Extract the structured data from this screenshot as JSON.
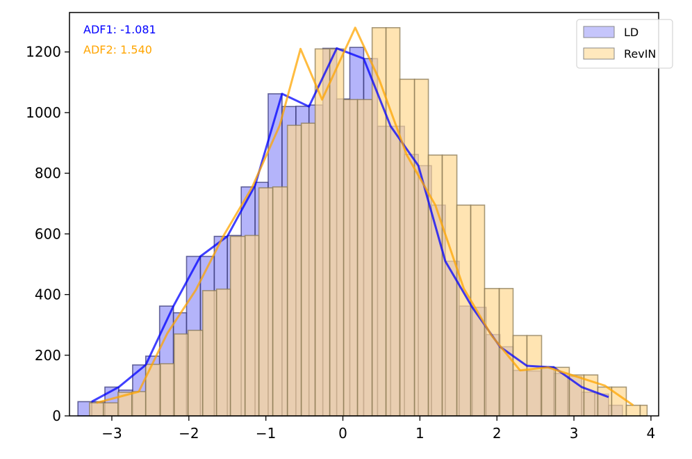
{
  "chart_data": {
    "type": "bar",
    "subtype": "overlaid-histogram-with-line",
    "title": "",
    "xlabel": "",
    "ylabel": "",
    "xlim": [
      -3.55,
      4.1
    ],
    "ylim": [
      0,
      1330
    ],
    "x_ticks": [
      -3,
      -2,
      -1,
      0,
      1,
      2,
      3,
      4
    ],
    "x_tick_labels": [
      "−3",
      "−2",
      "−1",
      "0",
      "1",
      "2",
      "3",
      "4"
    ],
    "y_ticks": [
      0,
      200,
      400,
      600,
      800,
      1000,
      1200
    ],
    "y_tick_labels": [
      "0",
      "200",
      "400",
      "600",
      "800",
      "1000",
      "1200"
    ],
    "grid": false,
    "legend": {
      "placement": "top-right",
      "entries": [
        "LD",
        "RevIN"
      ]
    },
    "annotations": [
      {
        "text": "ADF1: -1.081",
        "color": "#0000ff"
      },
      {
        "text": "ADF2: 1.540",
        "color": "#ffa500"
      }
    ],
    "series": [
      {
        "name": "LD",
        "color": "#0000ff",
        "bar_fill": "#8c8cf8",
        "bar_edges": [
          -3.44,
          -3.26,
          -3.09,
          -2.91,
          -2.73,
          -2.56,
          -2.38,
          -2.2,
          -2.03,
          -1.85,
          -1.67,
          -1.5,
          -1.32,
          -1.14,
          -0.97,
          -0.79,
          -0.61,
          -0.44,
          -0.26,
          -0.08,
          0.09,
          0.27,
          0.45,
          0.62,
          0.8,
          0.98,
          1.15,
          1.33,
          1.51,
          1.68,
          1.86,
          2.04,
          2.21,
          2.39,
          2.57,
          2.74,
          2.92,
          3.1,
          3.27,
          3.45,
          3.63
        ],
        "bar_values": [
          47,
          47,
          95,
          85,
          168,
          197,
          362,
          340,
          526,
          526,
          592,
          595,
          755,
          770,
          1062,
          1020,
          1021,
          1025,
          1212,
          1045,
          1215,
          1178,
          955,
          955,
          862,
          825,
          695,
          510,
          362,
          358,
          268,
          228,
          150,
          148,
          162,
          140,
          130,
          78,
          72,
          35
        ],
        "line_x": [
          -3.26,
          -2.91,
          -2.56,
          -2.2,
          -1.85,
          -1.5,
          -1.14,
          -0.79,
          -0.44,
          -0.08,
          0.27,
          0.62,
          0.98,
          1.33,
          1.68,
          2.04,
          2.39,
          2.74,
          3.1,
          3.45
        ],
        "line_y": [
          47,
          95,
          168,
          362,
          526,
          592,
          760,
          1062,
          1020,
          1212,
          1178,
          955,
          825,
          510,
          358,
          228,
          165,
          160,
          95,
          62
        ]
      },
      {
        "name": "RevIN",
        "color": "#ffa500",
        "bar_fill": "#ffd891",
        "bar_edges": [
          -3.29,
          -3.11,
          -2.92,
          -2.74,
          -2.56,
          -2.37,
          -2.19,
          -2.01,
          -1.82,
          -1.64,
          -1.46,
          -1.27,
          -1.09,
          -0.91,
          -0.72,
          -0.54,
          -0.36,
          -0.17,
          0.01,
          0.19,
          0.38,
          0.56,
          0.74,
          0.93,
          1.11,
          1.29,
          1.48,
          1.66,
          1.84,
          2.03,
          2.21,
          2.39,
          2.58,
          2.76,
          2.94,
          3.13,
          3.31,
          3.49,
          3.68,
          3.86,
          3.95
        ],
        "bar_values": [
          43,
          43,
          78,
          80,
          170,
          172,
          270,
          282,
          413,
          418,
          592,
          595,
          752,
          755,
          958,
          965,
          1210,
          1210,
          1043,
          1043,
          1280,
          1280,
          1110,
          1110,
          860,
          860,
          695,
          695,
          420,
          420,
          265,
          265,
          160,
          160,
          135,
          135,
          95,
          95,
          35,
          35
        ],
        "line_x": [
          -3.2,
          -2.65,
          -2.28,
          -1.91,
          -1.55,
          -1.18,
          -0.82,
          -0.55,
          -0.27,
          0.16,
          0.47,
          0.83,
          1.2,
          1.57,
          1.93,
          2.3,
          2.66,
          3.03,
          3.4,
          3.77
        ],
        "line_y": [
          43,
          80,
          272,
          415,
          594,
          753,
          958,
          1210,
          1043,
          1280,
          1110,
          860,
          695,
          420,
          265,
          150,
          160,
          130,
          100,
          35
        ]
      }
    ]
  }
}
